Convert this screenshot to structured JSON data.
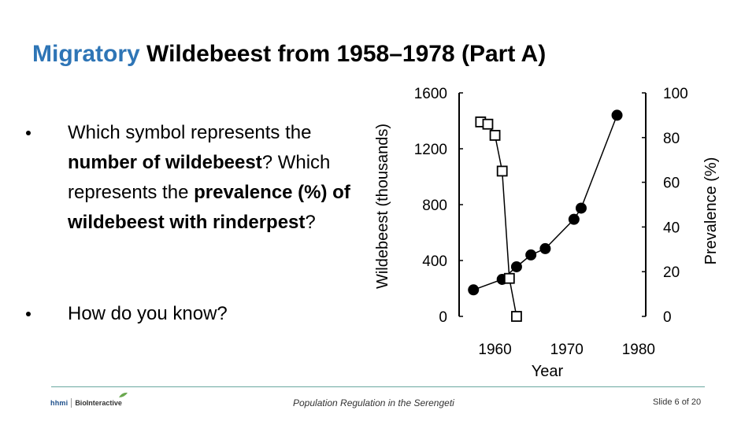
{
  "slide": {
    "title_accent": "Migratory",
    "title_rest": " Wildebeest from 1958–1978 (Part A)",
    "bullets": [
      {
        "parts": [
          {
            "text": "Which symbol represents the ",
            "bold": false
          },
          {
            "text": "number of wildebeest",
            "bold": true
          },
          {
            "text": "? Which represents the ",
            "bold": false
          },
          {
            "text": "prevalence (%) of wildebeest with rinderpest",
            "bold": true
          },
          {
            "text": "?",
            "bold": false
          }
        ]
      },
      {
        "parts": [
          {
            "text": "How do you know?",
            "bold": false
          }
        ]
      }
    ]
  },
  "footer": {
    "logo_hhmi": "hhmi",
    "logo_bio": "BioInteractive",
    "center_text": "Population Regulation in the Serengeti",
    "slide_number": "Slide 6 of 20"
  },
  "chart_data": {
    "type": "line",
    "xlabel": "Year",
    "ylabel": "Wildebeest (thousands)",
    "y2label": "Prevalence (%)",
    "xlim": [
      1955,
      1981
    ],
    "ylim": [
      0,
      1600
    ],
    "y2lim": [
      0,
      100
    ],
    "xticks": [
      "1960",
      "1970",
      "1980"
    ],
    "yticks": [
      "0",
      "400",
      "800",
      "1200",
      "1600"
    ],
    "y2ticks": [
      "0",
      "20",
      "40",
      "60",
      "80",
      "100"
    ],
    "grid": false,
    "series": [
      {
        "marker": "filled-circle",
        "axis": "left",
        "x": [
          1957,
          1961,
          1963,
          1965,
          1967,
          1971,
          1972,
          1977
        ],
        "y": [
          190,
          265,
          355,
          440,
          485,
          695,
          775,
          1440
        ]
      },
      {
        "marker": "open-square",
        "axis": "right",
        "x": [
          1958,
          1959,
          1960,
          1961,
          1962,
          1963
        ],
        "y": [
          87,
          86,
          81,
          65,
          17,
          0
        ]
      }
    ]
  }
}
